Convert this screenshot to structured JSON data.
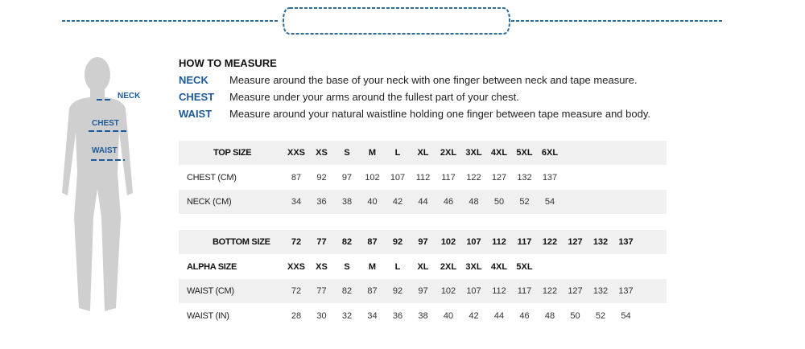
{
  "figure": {
    "neck_label": "NECK",
    "chest_label": "CHEST",
    "waist_label": "WAIST"
  },
  "howto": {
    "title": "HOW TO MEASURE",
    "items": [
      {
        "key": "NECK",
        "text": "Measure around the base of your neck with one finger between neck and tape measure."
      },
      {
        "key": "CHEST",
        "text": "Measure under your arms around the fullest part of your chest."
      },
      {
        "key": "WAIST",
        "text": "Measure around your natural waistline holding one finger between tape measure and body."
      }
    ]
  },
  "top_table": {
    "rows": [
      {
        "label": "TOP SIZE",
        "bold": true,
        "shaded": true,
        "cells": [
          "XXS",
          "XS",
          "S",
          "M",
          "L",
          "XL",
          "2XL",
          "3XL",
          "4XL",
          "5XL",
          "6XL"
        ]
      },
      {
        "label": "CHEST (CM)",
        "bold": false,
        "shaded": false,
        "cells": [
          "87",
          "92",
          "97",
          "102",
          "107",
          "112",
          "117",
          "122",
          "127",
          "132",
          "137"
        ]
      },
      {
        "label": "NECK (CM)",
        "bold": false,
        "shaded": true,
        "cells": [
          "34",
          "36",
          "38",
          "40",
          "42",
          "44",
          "46",
          "48",
          "50",
          "52",
          "54"
        ]
      }
    ]
  },
  "bottom_table": {
    "rows": [
      {
        "label": "BOTTOM  SIZE",
        "bold": true,
        "shaded": true,
        "cells": [
          "72",
          "77",
          "82",
          "87",
          "92",
          "97",
          "102",
          "107",
          "112",
          "117",
          "122",
          "127",
          "132",
          "137"
        ]
      },
      {
        "label": "ALPHA SIZE",
        "bold": true,
        "shaded": false,
        "cells": [
          "XXS",
          "XS",
          "S",
          "M",
          "L",
          "XL",
          "2XL",
          "3XL",
          "4XL",
          "5XL"
        ]
      },
      {
        "label": "WAIST (CM)",
        "bold": false,
        "shaded": true,
        "cells": [
          "72",
          "77",
          "82",
          "87",
          "92",
          "97",
          "102",
          "107",
          "112",
          "117",
          "122",
          "127",
          "132",
          "137"
        ]
      },
      {
        "label": "WAIST (IN)",
        "bold": false,
        "shaded": false,
        "cells": [
          "28",
          "30",
          "32",
          "34",
          "36",
          "38",
          "40",
          "42",
          "44",
          "46",
          "48",
          "50",
          "52",
          "54"
        ]
      }
    ]
  },
  "colors": {
    "accent": "#1d5a9b",
    "band": "#f0f0f0",
    "figure": "#cfcfcf"
  }
}
